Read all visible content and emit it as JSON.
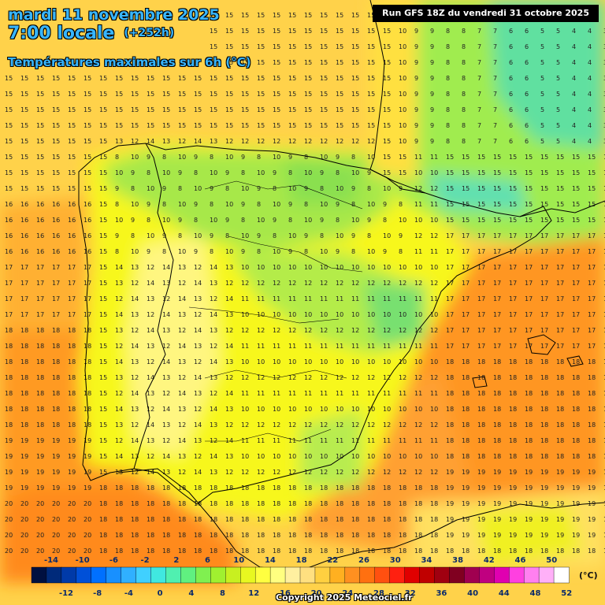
{
  "header": {
    "date_line": "mardi 11 novembre 2025",
    "time_line": "7:00 locale",
    "offset": "(+252h)",
    "subtitle": "Températures maximales sur 6h (°C)"
  },
  "run_banner": "Run GFS 18Z du vendredi 31 octobre 2025",
  "copyright": "Copyright 2025 Meteociel.fr",
  "legend": {
    "unit": "(°C)",
    "top_labels": [
      "-14",
      "-10",
      "-6",
      "-2",
      "2",
      "6",
      "10",
      "14",
      "18",
      "22",
      "26",
      "30",
      "34",
      "38",
      "42",
      "46",
      "50"
    ],
    "bottom_labels": [
      "-12",
      "-8",
      "-4",
      "0",
      "4",
      "8",
      "12",
      "16",
      "20",
      "24",
      "28",
      "32",
      "36",
      "40",
      "44",
      "48",
      "52"
    ],
    "colors": [
      "#001040",
      "#002a7a",
      "#003aa8",
      "#0050d8",
      "#0070ff",
      "#1890ff",
      "#30b0ff",
      "#40d0ff",
      "#40e8e0",
      "#50f0b0",
      "#60f080",
      "#80f050",
      "#a0f030",
      "#c8f020",
      "#e8f820",
      "#ffff40",
      "#ffff80",
      "#fff0a0",
      "#ffe080",
      "#ffd040",
      "#ffb020",
      "#ff9020",
      "#ff7010",
      "#ff5010",
      "#ff2010",
      "#e00000",
      "#c00000",
      "#a00010",
      "#800020",
      "#a00050",
      "#c00080",
      "#e000b0",
      "#ff40e0",
      "#ff80f0",
      "#ffb0f8",
      "#ffffff"
    ]
  },
  "colors": {
    "sea_warm": "#ffd24a",
    "sea_orange": "#ffa32a",
    "sea_deep_orange": "#ff8a1a",
    "land_cool": "#f7f71c",
    "land_green": "#a7e84a",
    "land_cyan": "#4dd6a1",
    "coast_line": "#000000"
  }
}
